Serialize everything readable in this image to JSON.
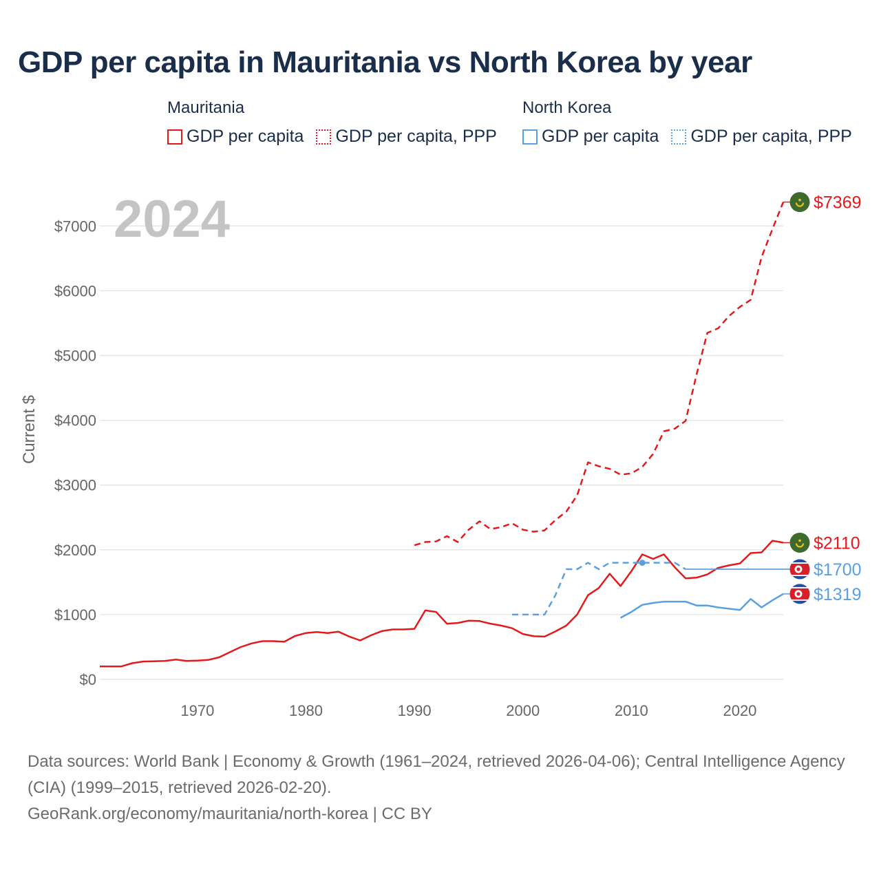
{
  "title": "GDP per capita in Mauritania vs North Korea by year",
  "legend": {
    "groups": [
      {
        "name": "Mauritania",
        "color": "#e31a1c",
        "items": [
          {
            "label": "GDP per capita",
            "style": "solid"
          },
          {
            "label": "GDP per capita, PPP",
            "style": "dotted"
          }
        ]
      },
      {
        "name": "North Korea",
        "color": "#5aa0e0",
        "items": [
          {
            "label": "GDP per capita",
            "style": "solid"
          },
          {
            "label": "GDP per capita, PPP",
            "style": "dotted"
          }
        ]
      }
    ]
  },
  "footer": {
    "sources": "Data sources: World Bank | Economy & Growth (1961–2024, retrieved 2026-04-06); Central Intelligence Agency (CIA) (1999–2015, retrieved 2026-02-20).",
    "credit": "GeoRank.org/economy/mauritania/north-korea | CC BY"
  },
  "chart_data": {
    "type": "line",
    "title": "GDP per capita in Mauritania vs North Korea by year",
    "year_label": "2024",
    "xlabel": "",
    "ylabel": "Current $",
    "xlim": [
      1961,
      2024
    ],
    "ylim": [
      0,
      7600
    ],
    "x_ticks": [
      1970,
      1980,
      1990,
      2000,
      2010,
      2020
    ],
    "y_ticks": [
      0,
      1000,
      2000,
      3000,
      4000,
      5000,
      6000,
      7000
    ],
    "y_tick_labels": [
      "$0",
      "$1000",
      "$2000",
      "$3000",
      "$4000",
      "$5000",
      "$6000",
      "$7000"
    ],
    "grid": true,
    "series": [
      {
        "name": "Mauritania GDP per capita",
        "country": "Mauritania",
        "color": "#e31a1c",
        "dash": "solid",
        "end_label": "$2110",
        "flag": "mauritania",
        "x": [
          1961,
          1962,
          1963,
          1964,
          1965,
          1966,
          1967,
          1968,
          1969,
          1970,
          1971,
          1972,
          1973,
          1974,
          1975,
          1976,
          1977,
          1978,
          1979,
          1980,
          1981,
          1982,
          1983,
          1984,
          1985,
          1986,
          1987,
          1988,
          1989,
          1990,
          1991,
          1992,
          1993,
          1994,
          1995,
          1996,
          1997,
          1998,
          1999,
          2000,
          2001,
          2002,
          2003,
          2004,
          2005,
          2006,
          2007,
          2008,
          2009,
          2010,
          2011,
          2012,
          2013,
          2014,
          2015,
          2016,
          2017,
          2018,
          2019,
          2020,
          2021,
          2022,
          2023,
          2024
        ],
        "values": [
          200,
          200,
          200,
          250,
          275,
          280,
          285,
          305,
          285,
          290,
          300,
          340,
          420,
          500,
          555,
          590,
          590,
          580,
          670,
          715,
          730,
          715,
          735,
          660,
          600,
          680,
          745,
          770,
          770,
          780,
          1065,
          1040,
          860,
          870,
          905,
          900,
          860,
          830,
          790,
          700,
          665,
          660,
          740,
          830,
          1000,
          1300,
          1410,
          1630,
          1440,
          1670,
          1930,
          1860,
          1930,
          1730,
          1560,
          1570,
          1620,
          1720,
          1760,
          1790,
          1950,
          1960,
          2140,
          2110
        ]
      },
      {
        "name": "Mauritania GDP per capita, PPP",
        "country": "Mauritania",
        "color": "#e31a1c",
        "dash": "dashed",
        "end_label": "$7369",
        "flag": "mauritania",
        "x": [
          1990,
          1991,
          1992,
          1993,
          1994,
          1995,
          1996,
          1997,
          1998,
          1999,
          2000,
          2001,
          2002,
          2003,
          2004,
          2005,
          2006,
          2007,
          2008,
          2009,
          2010,
          2011,
          2012,
          2013,
          2014,
          2015,
          2016,
          2017,
          2018,
          2019,
          2020,
          2021,
          2022,
          2023,
          2024
        ],
        "values": [
          2070,
          2120,
          2130,
          2210,
          2120,
          2310,
          2440,
          2320,
          2350,
          2410,
          2310,
          2280,
          2300,
          2460,
          2590,
          2840,
          3350,
          3290,
          3250,
          3160,
          3180,
          3280,
          3480,
          3830,
          3870,
          3990,
          4700,
          5350,
          5420,
          5610,
          5750,
          5860,
          6520,
          6950,
          7369
        ]
      },
      {
        "name": "North Korea GDP per capita",
        "country": "North Korea",
        "color": "#5aa0e0",
        "dash": "solid",
        "end_label": "$1319",
        "flag": "north-korea",
        "x": [
          2009,
          2010,
          2011,
          2012,
          2013,
          2014,
          2015,
          2016,
          2017,
          2018,
          2019,
          2020,
          2021,
          2022,
          2023,
          2024
        ],
        "values": [
          950,
          1040,
          1150,
          1180,
          1200,
          1200,
          1200,
          1140,
          1140,
          1110,
          1090,
          1070,
          1240,
          1110,
          1220,
          1319
        ]
      },
      {
        "name": "North Korea GDP per capita, PPP",
        "country": "North Korea",
        "color": "#5aa0e0",
        "dash": "dashed",
        "end_label": "$1700",
        "flag": "north-korea",
        "x": [
          1999,
          2000,
          2001,
          2002,
          2003,
          2004,
          2005,
          2006,
          2007,
          2008,
          2009,
          2010,
          2011,
          2012,
          2013,
          2014,
          2015
        ],
        "values": [
          1000,
          1000,
          1000,
          1000,
          1300,
          1700,
          1700,
          1800,
          1700,
          1800,
          1800,
          1800,
          1800,
          1800,
          1800,
          1800,
          1700
        ],
        "last_known": 1700
      }
    ]
  }
}
